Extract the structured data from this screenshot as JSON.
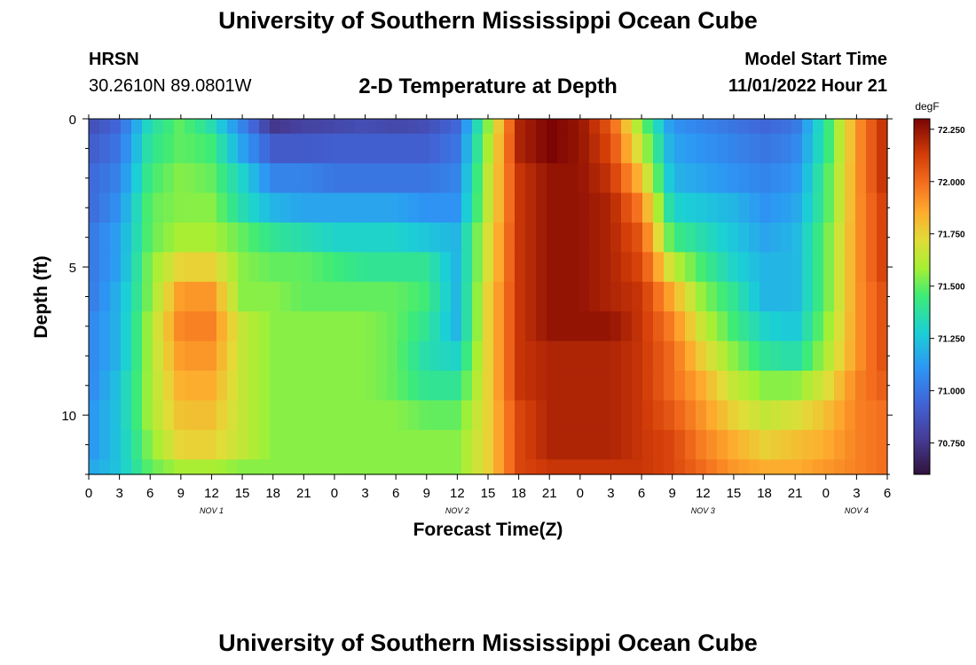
{
  "header": {
    "title": "University of Southern Mississippi Ocean Cube",
    "station": "HRSN",
    "coords": "30.2610N  89.0801W",
    "subtitle": "2-D Temperature at Depth",
    "model_start_label": "Model Start Time",
    "model_start_value": "11/01/2022 Hour 21"
  },
  "footer": {
    "title": "University of Southern Mississippi Ocean Cube"
  },
  "chart_data": {
    "type": "heatmap",
    "title": "2-D Temperature at Depth",
    "xlabel": "Forecast Time(Z)",
    "ylabel": "Depth (ft)",
    "x_hours": [
      0,
      3,
      6,
      9,
      12,
      15,
      18,
      21,
      24,
      27,
      30,
      33,
      36,
      39,
      42,
      45,
      48,
      51,
      54,
      57,
      60,
      63,
      66,
      69,
      72,
      75,
      78
    ],
    "x_tick_labels": [
      "0",
      "3",
      "6",
      "9",
      "12",
      "15",
      "18",
      "21",
      "0",
      "3",
      "6",
      "9",
      "12",
      "15",
      "18",
      "21",
      "0",
      "3",
      "6",
      "9",
      "12",
      "15",
      "18",
      "21",
      "0",
      "3",
      "6"
    ],
    "day_labels": [
      {
        "label": "NOV 1",
        "hour": 12
      },
      {
        "label": "NOV 2",
        "hour": 36
      },
      {
        "label": "NOV 3",
        "hour": 60
      },
      {
        "label": "NOV 4",
        "hour": 75
      }
    ],
    "depths_ft": [
      0,
      1,
      2,
      3,
      4,
      5,
      6,
      7,
      8,
      9,
      10,
      11,
      12
    ],
    "y_tick_labels": [
      "0",
      "5",
      "10"
    ],
    "y_ticks": [
      0,
      5,
      10
    ],
    "ylim": [
      0,
      12
    ],
    "xlim": [
      0,
      78
    ],
    "colorbar": {
      "unit": "degF",
      "min": 70.6,
      "max": 72.3,
      "ticks": [
        "72.250",
        "72.000",
        "71.750",
        "71.500",
        "71.250",
        "71.000",
        "70.750"
      ],
      "tick_values": [
        72.25,
        72.0,
        71.75,
        71.5,
        71.25,
        71.0,
        70.75
      ]
    },
    "values": [
      [
        70.85,
        70.95,
        71.35,
        71.5,
        71.35,
        71.05,
        70.75,
        70.8,
        70.82,
        70.85,
        70.82,
        70.85,
        70.95,
        71.55,
        72.2,
        72.3,
        72.25,
        72.05,
        71.55,
        71.1,
        71.05,
        71.0,
        70.95,
        71.0,
        71.4,
        71.9,
        72.2
      ],
      [
        70.9,
        71.0,
        71.4,
        71.5,
        71.45,
        71.15,
        70.9,
        70.9,
        70.92,
        70.92,
        70.92,
        70.92,
        71.0,
        71.6,
        72.2,
        72.3,
        72.25,
        72.1,
        71.65,
        71.15,
        71.1,
        71.05,
        71.0,
        71.05,
        71.4,
        71.9,
        72.2
      ],
      [
        70.95,
        71.05,
        71.45,
        71.55,
        71.5,
        71.3,
        71.05,
        71.05,
        71.0,
        71.0,
        71.0,
        71.0,
        71.05,
        71.65,
        72.15,
        72.25,
        72.25,
        72.15,
        71.8,
        71.2,
        71.15,
        71.1,
        71.05,
        71.1,
        71.45,
        71.9,
        72.2
      ],
      [
        70.95,
        71.1,
        71.5,
        71.55,
        71.55,
        71.35,
        71.2,
        71.15,
        71.15,
        71.15,
        71.15,
        71.1,
        71.1,
        71.65,
        72.15,
        72.25,
        72.25,
        72.2,
        71.95,
        71.3,
        71.25,
        71.2,
        71.1,
        71.15,
        71.45,
        71.9,
        72.15
      ],
      [
        71.0,
        71.15,
        71.5,
        71.6,
        71.6,
        71.5,
        71.4,
        71.35,
        71.3,
        71.3,
        71.3,
        71.25,
        71.2,
        71.7,
        72.15,
        72.25,
        72.25,
        72.2,
        72.05,
        71.45,
        71.35,
        71.25,
        71.15,
        71.2,
        71.5,
        71.9,
        72.15
      ],
      [
        71.0,
        71.15,
        71.55,
        71.75,
        71.75,
        71.55,
        71.5,
        71.5,
        71.45,
        71.4,
        71.4,
        71.4,
        71.2,
        71.7,
        72.15,
        72.25,
        72.25,
        72.2,
        72.1,
        71.65,
        71.45,
        71.3,
        71.2,
        71.2,
        71.5,
        71.9,
        72.15
      ],
      [
        71.0,
        71.2,
        71.55,
        71.9,
        71.9,
        71.55,
        71.55,
        71.5,
        71.5,
        71.5,
        71.5,
        71.45,
        71.2,
        71.75,
        72.15,
        72.25,
        72.25,
        72.2,
        72.15,
        71.85,
        71.55,
        71.4,
        71.2,
        71.2,
        71.5,
        71.9,
        72.1
      ],
      [
        71.05,
        71.2,
        71.6,
        71.95,
        71.95,
        71.65,
        71.55,
        71.55,
        71.55,
        71.55,
        71.5,
        71.4,
        71.2,
        71.75,
        72.15,
        72.25,
        72.25,
        72.25,
        72.15,
        71.95,
        71.65,
        71.45,
        71.3,
        71.25,
        71.55,
        71.9,
        72.1
      ],
      [
        71.05,
        71.2,
        71.6,
        71.9,
        71.9,
        71.65,
        71.55,
        71.55,
        71.55,
        71.55,
        71.5,
        71.35,
        71.3,
        71.75,
        72.15,
        72.2,
        72.2,
        72.2,
        72.15,
        72.0,
        71.75,
        71.55,
        71.4,
        71.35,
        71.6,
        71.9,
        72.1
      ],
      [
        71.05,
        71.25,
        71.6,
        71.85,
        71.85,
        71.65,
        71.55,
        71.55,
        71.55,
        71.55,
        71.5,
        71.4,
        71.4,
        71.75,
        72.15,
        72.2,
        72.2,
        72.2,
        72.15,
        72.0,
        71.85,
        71.65,
        71.55,
        71.55,
        71.7,
        71.95,
        72.05
      ],
      [
        71.1,
        71.25,
        71.6,
        71.8,
        71.8,
        71.65,
        71.55,
        71.55,
        71.55,
        71.55,
        71.55,
        71.5,
        71.5,
        71.75,
        72.1,
        72.2,
        72.2,
        72.2,
        72.15,
        72.05,
        71.9,
        71.75,
        71.65,
        71.7,
        71.8,
        71.95,
        72.0
      ],
      [
        71.1,
        71.25,
        71.55,
        71.75,
        71.75,
        71.65,
        71.55,
        71.55,
        71.55,
        71.55,
        71.55,
        71.55,
        71.55,
        71.75,
        72.1,
        72.2,
        72.2,
        72.2,
        72.15,
        72.1,
        71.95,
        71.85,
        71.75,
        71.8,
        71.85,
        71.95,
        72.0
      ],
      [
        71.15,
        71.25,
        71.5,
        71.6,
        71.6,
        71.55,
        71.55,
        71.55,
        71.55,
        71.55,
        71.55,
        71.55,
        71.55,
        71.75,
        72.1,
        72.15,
        72.15,
        72.15,
        72.15,
        72.1,
        72.0,
        71.9,
        71.85,
        71.85,
        71.9,
        71.95,
        72.0
      ]
    ]
  }
}
